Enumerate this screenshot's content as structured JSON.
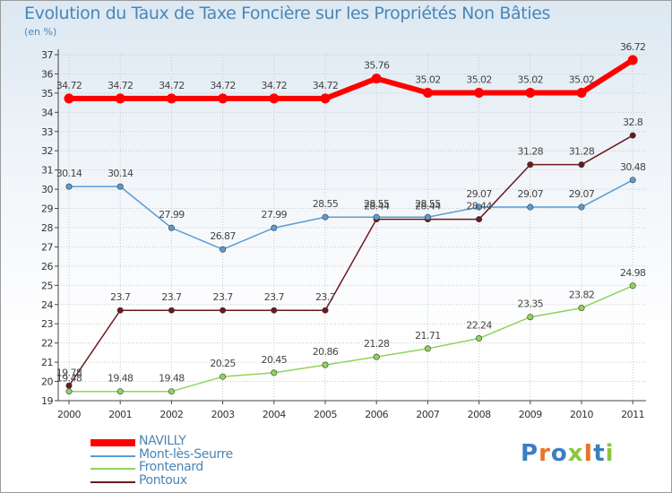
{
  "title": "Evolution du Taux de Taxe Foncière sur les Propriétés Non Bâties",
  "subtitle": "(en %)",
  "brand": "ProxIti",
  "colors": {
    "navilly": "#ff0000",
    "mont": "#5b9bd5",
    "frontenard": "#8fd45a",
    "pontoux": "#6b1a1f",
    "axis": "#444444",
    "grid": "#c8c8c8"
  },
  "chart_data": {
    "type": "line",
    "title": "Evolution du Taux de Taxe Foncière sur les Propriétés Non Bâties",
    "ylabel": "(en %)",
    "xlabel": "",
    "ylim": [
      19,
      37
    ],
    "yticks": [
      19,
      20,
      21,
      22,
      23,
      24,
      25,
      26,
      27,
      28,
      29,
      30,
      31,
      32,
      33,
      34,
      35,
      36,
      37
    ],
    "categories": [
      "2000",
      "2001",
      "2002",
      "2003",
      "2004",
      "2005",
      "2006",
      "2007",
      "2008",
      "2009",
      "2010",
      "2011"
    ],
    "series": [
      {
        "key": "navilly",
        "name": "NAVILLY",
        "values": [
          34.72,
          34.72,
          34.72,
          34.72,
          34.72,
          34.72,
          35.76,
          35.02,
          35.02,
          35.02,
          35.02,
          36.72
        ],
        "labels": [
          "34.72",
          "34.72",
          "34.72",
          "34.72",
          "34.72",
          "34.72",
          "35.76",
          "35.02",
          "35.02",
          "35.02",
          "35.02",
          "36.72"
        ]
      },
      {
        "key": "mont",
        "name": "Mont-lès-Seurre",
        "values": [
          30.14,
          30.14,
          27.99,
          26.87,
          27.99,
          28.55,
          28.55,
          28.55,
          29.07,
          29.07,
          29.07,
          30.48
        ],
        "labels": [
          "30.14",
          "30.14",
          "27.99",
          "26.87",
          "27.99",
          "28.55",
          "28.55",
          "28.55",
          "29.07",
          "29.07",
          "29.07",
          "30.48"
        ]
      },
      {
        "key": "frontenard",
        "name": "Frontenard",
        "values": [
          19.48,
          19.48,
          19.48,
          20.25,
          20.45,
          20.86,
          21.28,
          21.71,
          22.24,
          23.35,
          23.82,
          24.98
        ],
        "labels": [
          "19.48",
          "19.48",
          "19.48",
          "20.25",
          "20.45",
          "20.86",
          "21.28",
          "21.71",
          "22.24",
          "23.35",
          "23.82",
          "24.98"
        ]
      },
      {
        "key": "pontoux",
        "name": "Pontoux",
        "values": [
          19.78,
          23.7,
          23.7,
          23.7,
          23.7,
          23.7,
          28.44,
          28.44,
          28.44,
          31.28,
          31.28,
          32.8
        ],
        "labels": [
          "19.78",
          "23.7",
          "23.7",
          "23.7",
          "23.7",
          "23.7",
          "28.44",
          "28.44",
          "28.44",
          "31.28",
          "31.28",
          "32.8"
        ]
      }
    ],
    "legend": "bottom-left",
    "grid": true
  }
}
